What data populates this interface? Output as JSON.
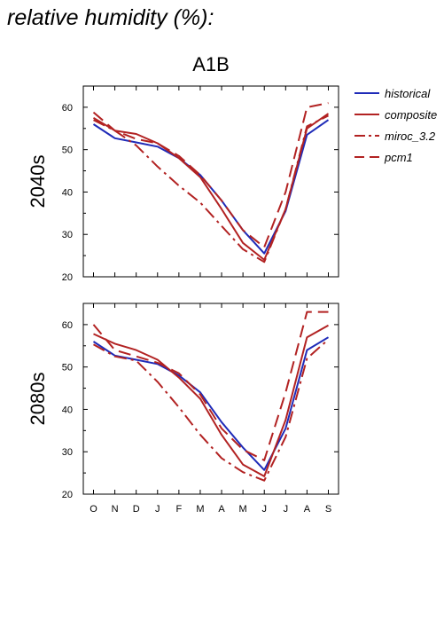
{
  "heading": "relative humidity (%):",
  "colors": {
    "historical": "#1f2bb8",
    "composite": "#b22222",
    "miroc_3.2": "#b22222",
    "pcm1": "#b22222"
  },
  "chart_data": [
    {
      "type": "line",
      "title": "A1B",
      "ylabel": "2040s",
      "xlabel": "",
      "categories": [
        "O",
        "N",
        "D",
        "J",
        "F",
        "M",
        "A",
        "M",
        "J",
        "J",
        "A",
        "S"
      ],
      "ylim": [
        20,
        65
      ],
      "yticks": [
        20,
        30,
        40,
        50,
        60
      ],
      "grid": false,
      "legend_position": "right",
      "series": [
        {
          "name": "historical",
          "style": "solid",
          "color": "#1f2bb8",
          "values": [
            56,
            52.7,
            51.7,
            50.7,
            48,
            44,
            38,
            31,
            25.5,
            35.5,
            53.5,
            57
          ]
        },
        {
          "name": "composite",
          "style": "solid",
          "color": "#b22222",
          "values": [
            57.5,
            54.5,
            53.7,
            51.5,
            48,
            43.5,
            36,
            28,
            24,
            36,
            55,
            58.5
          ]
        },
        {
          "name": "miroc_3.2",
          "style": "dashdot",
          "color": "#b22222",
          "values": [
            57,
            54.5,
            51,
            46,
            41.5,
            37.5,
            32,
            26.5,
            23.5,
            36,
            55.5,
            58
          ]
        },
        {
          "name": "pcm1",
          "style": "dashed",
          "color": "#b22222",
          "values": [
            58.8,
            54.5,
            52.5,
            51.5,
            48.5,
            44,
            38,
            31,
            27,
            40,
            60,
            61
          ]
        }
      ]
    },
    {
      "type": "line",
      "title": "",
      "ylabel": "2080s",
      "xlabel": "",
      "categories": [
        "O",
        "N",
        "D",
        "J",
        "F",
        "M",
        "A",
        "M",
        "J",
        "J",
        "A",
        "S"
      ],
      "ylim": [
        20,
        85
      ],
      "yticks": [
        20,
        30,
        40,
        50,
        60
      ],
      "grid": false,
      "legend_position": "",
      "series": [
        {
          "name": "historical",
          "style": "solid",
          "color": "#1f2bb8",
          "values": [
            56,
            52.7,
            51.7,
            50.7,
            48,
            44,
            37,
            31,
            25.7,
            35.5,
            54,
            57
          ]
        },
        {
          "name": "composite",
          "style": "solid",
          "color": "#b22222",
          "values": [
            57.8,
            55.5,
            54,
            51.7,
            47.5,
            42.5,
            34,
            27,
            24.2,
            37.5,
            57,
            59.8
          ]
        },
        {
          "name": "miroc_3.2",
          "style": "dashdot",
          "color": "#b22222",
          "values": [
            55.3,
            52.5,
            51.5,
            46.5,
            40.5,
            34,
            28.5,
            25.2,
            23.2,
            33.5,
            52,
            56.5
          ]
        },
        {
          "name": "pcm1",
          "style": "dashed",
          "color": "#b22222",
          "values": [
            60,
            54,
            52.5,
            51,
            48.5,
            43.5,
            35.5,
            30.5,
            28,
            44,
            63,
            63
          ]
        }
      ]
    }
  ]
}
